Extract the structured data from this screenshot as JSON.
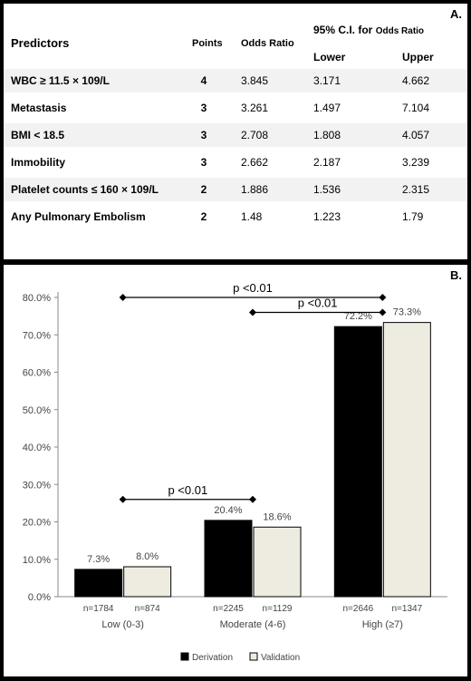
{
  "panel_a": {
    "letter": "A.",
    "headers": {
      "predictors": "Predictors",
      "points": "Points",
      "odds_ratio": "Odds Ratio",
      "ci_prefix": "95% C.I. for",
      "ci_suffix": "Odds Ratio",
      "lower": "Lower",
      "upper": "Upper"
    },
    "rows": [
      {
        "predictor": "WBC ≥ 11.5 × 109/L",
        "points": "4",
        "odds_ratio": "3.845",
        "lower": "3.171",
        "upper": "4.662"
      },
      {
        "predictor": "Metastasis",
        "points": "3",
        "odds_ratio": "3.261",
        "lower": "1.497",
        "upper": "7.104"
      },
      {
        "predictor": "BMI < 18.5",
        "points": "3",
        "odds_ratio": "2.708",
        "lower": "1.808",
        "upper": "4.057"
      },
      {
        "predictor": "Immobility",
        "points": "3",
        "odds_ratio": "2.662",
        "lower": "2.187",
        "upper": "3.239"
      },
      {
        "predictor": "Platelet counts ≤ 160 × 109/L",
        "points": "2",
        "odds_ratio": "1.886",
        "lower": "1.536",
        "upper": "2.315"
      },
      {
        "predictor": "Any Pulmonary Embolism",
        "points": "2",
        "odds_ratio": "1.48",
        "lower": "1.223",
        "upper": "1.79"
      }
    ]
  },
  "panel_b": {
    "letter": "B.",
    "legend_placement": "bottom",
    "colors": {
      "derivation": "#000000",
      "validation": "#eeece1"
    },
    "chart_data": {
      "type": "bar",
      "categories": [
        "Low (0-3)",
        "Moderate (4-6)",
        "High (≥7)"
      ],
      "series": [
        {
          "name": "Derivation",
          "values": [
            7.3,
            20.4,
            72.2
          ],
          "labels": [
            "7.3%",
            "20.4%",
            "72.2%"
          ],
          "n": [
            "n=1784",
            "n=2245",
            "n=2646"
          ]
        },
        {
          "name": "Validation",
          "values": [
            8.0,
            18.6,
            73.3
          ],
          "labels": [
            "8.0%",
            "18.6%",
            "73.3%"
          ],
          "n": [
            "n=874",
            "n=1129",
            "n=1347"
          ]
        }
      ],
      "ylim": [
        0,
        80
      ],
      "yticks": [
        "0.0%",
        "10.0%",
        "20.0%",
        "30.0%",
        "40.0%",
        "50.0%",
        "60.0%",
        "70.0%",
        "80.0%"
      ],
      "xlabel": "",
      "ylabel": "",
      "title": "",
      "annotations": [
        {
          "text": "p <0.01",
          "from": 0,
          "to": 2,
          "level": 80
        },
        {
          "text": "p <0.01",
          "from": 1,
          "to": 2,
          "level": 76
        },
        {
          "text": "p <0.01",
          "from": 0,
          "to": 1,
          "level": 26
        }
      ]
    }
  }
}
